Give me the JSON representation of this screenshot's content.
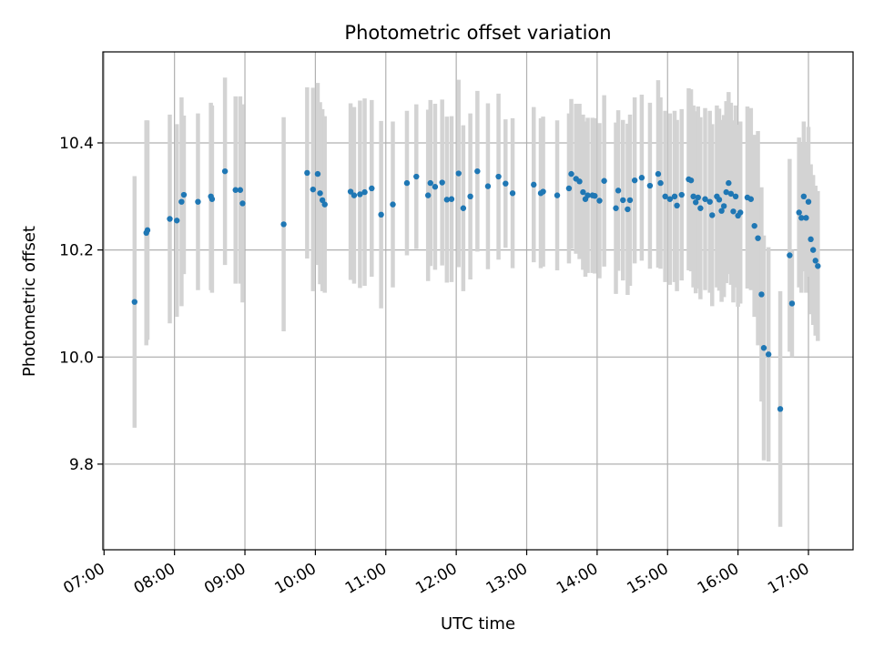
{
  "chart_data": {
    "type": "scatter",
    "title": "Photometric offset variation",
    "xlabel": "UTC time",
    "ylabel": "Photometric offset",
    "x_tick_labels": [
      "07:00",
      "08:00",
      "09:00",
      "10:00",
      "11:00",
      "12:00",
      "13:00",
      "14:00",
      "15:00",
      "16:00",
      "17:00"
    ],
    "y_tick_labels": [
      "9.8",
      "10.0",
      "10.2",
      "10.4"
    ],
    "y_ticks": [
      9.8,
      10.0,
      10.2,
      10.4
    ],
    "x_ticks": [
      "07:00",
      "08:00",
      "09:00",
      "10:00",
      "11:00",
      "12:00",
      "13:00",
      "14:00",
      "15:00",
      "16:00",
      "17:00"
    ],
    "xlim": [
      "06:59",
      "17:38"
    ],
    "ylim": [
      9.64,
      10.57
    ],
    "grid": true,
    "colors": {
      "points": "#1f77b4",
      "errorbars": "#d3d3d3",
      "grid": "#b0b0b0"
    },
    "series": [
      {
        "x": [
          "07:26",
          "07:36",
          "07:37",
          "07:56",
          "08:02",
          "08:06",
          "08:08",
          "08:20",
          "08:31",
          "08:32",
          "08:43",
          "08:52",
          "08:56",
          "08:58",
          "09:33",
          "09:53",
          "09:58",
          "10:02",
          "10:04",
          "10:06",
          "10:08",
          "10:30",
          "10:33",
          "10:38",
          "10:42",
          "10:48",
          "10:56",
          "11:06",
          "11:18",
          "11:26",
          "11:36",
          "11:38",
          "11:42",
          "11:48",
          "11:52",
          "11:56",
          "12:02",
          "12:06",
          "12:12",
          "12:18",
          "12:27",
          "12:36",
          "12:42",
          "12:48",
          "13:06",
          "13:12",
          "13:14",
          "13:26",
          "13:36",
          "13:38",
          "13:42",
          "13:45",
          "13:48",
          "13:50",
          "13:52",
          "13:56",
          "13:58",
          "14:02",
          "14:06",
          "14:16",
          "14:18",
          "14:22",
          "14:26",
          "14:28",
          "14:32",
          "14:38",
          "14:45",
          "14:52",
          "14:54",
          "14:58",
          "15:02",
          "15:06",
          "15:08",
          "15:12",
          "15:18",
          "15:20",
          "15:22",
          "15:24",
          "15:26",
          "15:28",
          "15:32",
          "15:36",
          "15:38",
          "15:42",
          "15:44",
          "15:46",
          "15:48",
          "15:50",
          "15:52",
          "15:54",
          "15:56",
          "15:58",
          "16:00",
          "16:02",
          "16:08",
          "16:11",
          "16:14",
          "16:17",
          "16:20",
          "16:22",
          "16:26",
          "16:36",
          "16:44",
          "16:46",
          "16:52",
          "16:54",
          "16:56",
          "16:58",
          "17:00",
          "17:02",
          "17:04",
          "17:06",
          "17:08"
        ],
        "y": [
          10.103,
          10.232,
          10.237,
          10.258,
          10.255,
          10.29,
          10.303,
          10.29,
          10.3,
          10.295,
          10.347,
          10.312,
          10.312,
          10.287,
          10.248,
          10.344,
          10.313,
          10.342,
          10.306,
          10.293,
          10.285,
          10.309,
          10.302,
          10.304,
          10.308,
          10.315,
          10.266,
          10.285,
          10.325,
          10.337,
          10.302,
          10.325,
          10.318,
          10.326,
          10.294,
          10.295,
          10.343,
          10.278,
          10.3,
          10.347,
          10.319,
          10.337,
          10.324,
          10.306,
          10.322,
          10.306,
          10.309,
          10.302,
          10.315,
          10.342,
          10.333,
          10.328,
          10.308,
          10.295,
          10.302,
          10.302,
          10.301,
          10.292,
          10.329,
          10.278,
          10.311,
          10.293,
          10.276,
          10.293,
          10.33,
          10.335,
          10.32,
          10.342,
          10.325,
          10.3,
          10.295,
          10.3,
          10.283,
          10.303,
          10.332,
          10.33,
          10.3,
          10.289,
          10.298,
          10.278,
          10.295,
          10.29,
          10.265,
          10.3,
          10.294,
          10.273,
          10.282,
          10.308,
          10.325,
          10.305,
          10.272,
          10.3,
          10.264,
          10.27,
          10.298,
          10.295,
          10.245,
          10.222,
          10.117,
          10.017,
          10.005,
          9.903,
          10.19,
          10.1,
          10.27,
          10.26,
          10.3,
          10.26,
          10.29,
          10.22,
          10.2,
          10.18,
          10.17
        ],
        "yerr": [
          0.235,
          0.21,
          0.205,
          0.195,
          0.18,
          0.195,
          0.148,
          0.165,
          0.175,
          0.175,
          0.175,
          0.175,
          0.175,
          0.185,
          0.2,
          0.16,
          0.19,
          0.17,
          0.17,
          0.17,
          0.165,
          0.165,
          0.165,
          0.175,
          0.175,
          0.165,
          0.175,
          0.155,
          0.135,
          0.135,
          0.16,
          0.155,
          0.155,
          0.155,
          0.155,
          0.155,
          0.175,
          0.155,
          0.155,
          0.15,
          0.155,
          0.155,
          0.12,
          0.14,
          0.145,
          0.14,
          0.14,
          0.14,
          0.14,
          0.14,
          0.14,
          0.145,
          0.145,
          0.145,
          0.145,
          0.145,
          0.145,
          0.145,
          0.16,
          0.16,
          0.15,
          0.15,
          0.16,
          0.16,
          0.155,
          0.155,
          0.155,
          0.175,
          0.16,
          0.16,
          0.16,
          0.16,
          0.16,
          0.16,
          0.17,
          0.17,
          0.17,
          0.17,
          0.17,
          0.17,
          0.17,
          0.17,
          0.17,
          0.17,
          0.17,
          0.17,
          0.17,
          0.17,
          0.17,
          0.17,
          0.17,
          0.17,
          0.17,
          0.17,
          0.17,
          0.17,
          0.17,
          0.2,
          0.2,
          0.21,
          0.2,
          0.22,
          0.18,
          0.1,
          0.14,
          0.14,
          0.14,
          0.14,
          0.14,
          0.14,
          0.14,
          0.14,
          0.14
        ]
      }
    ]
  }
}
